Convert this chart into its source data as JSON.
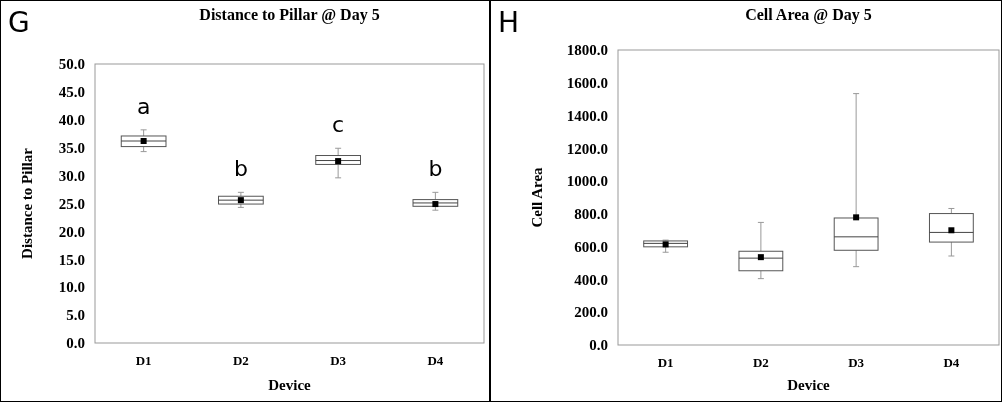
{
  "chart_data": [
    {
      "type": "box",
      "title": "Distance to Pillar @ Day 5",
      "xlabel": "Device",
      "ylabel": "Distance to Pillar",
      "categories": [
        "D1",
        "D2",
        "D3",
        "D4"
      ],
      "boxes": [
        {
          "low": 34.3,
          "q1": 35.2,
          "median": 36.2,
          "q3": 37.1,
          "high": 38.2,
          "mean": 36.2
        },
        {
          "low": 24.3,
          "q1": 24.9,
          "median": 25.6,
          "q3": 26.3,
          "high": 27.0,
          "mean": 25.6
        },
        {
          "low": 29.6,
          "q1": 32.0,
          "median": 32.7,
          "q3": 33.6,
          "high": 34.9,
          "mean": 32.6
        },
        {
          "low": 23.8,
          "q1": 24.5,
          "median": 25.1,
          "q3": 25.7,
          "high": 27.0,
          "mean": 24.9
        }
      ],
      "ylim": [
        0,
        50
      ],
      "yticks": [
        {
          "value": 0,
          "label": "0.0"
        },
        {
          "value": 5,
          "label": "5.0"
        },
        {
          "value": 10,
          "label": "10.0"
        },
        {
          "value": 15,
          "label": "15.0"
        },
        {
          "value": 20,
          "label": "20.0"
        },
        {
          "value": 25,
          "label": "25.0"
        },
        {
          "value": 30,
          "label": "30.0"
        },
        {
          "value": 35,
          "label": "35.0"
        },
        {
          "value": 40,
          "label": "40.0"
        },
        {
          "value": 45,
          "label": "45.0"
        },
        {
          "value": 50,
          "label": "50.0"
        }
      ],
      "annotations": [
        "G",
        "a",
        "b",
        "c",
        "b"
      ]
    },
    {
      "type": "box",
      "title": "Cell Area @ Day 5",
      "xlabel": "Device",
      "ylabel": "Cell Area",
      "categories": [
        "D1",
        "D2",
        "D3",
        "D4"
      ],
      "boxes": [
        {
          "low": 566,
          "q1": 599,
          "median": 620,
          "q3": 635,
          "high": 640,
          "mean": 614
        },
        {
          "low": 405,
          "q1": 453,
          "median": 530,
          "q3": 572,
          "high": 748,
          "mean": 536
        },
        {
          "low": 478,
          "q1": 578,
          "median": 660,
          "q3": 775,
          "high": 1534,
          "mean": 779
        },
        {
          "low": 543,
          "q1": 628,
          "median": 687,
          "q3": 802,
          "high": 833,
          "mean": 700
        }
      ],
      "ylim": [
        0,
        1800
      ],
      "yticks": [
        {
          "value": 0,
          "label": "0.0"
        },
        {
          "value": 200,
          "label": "200.0"
        },
        {
          "value": 400,
          "label": "400.0"
        },
        {
          "value": 600,
          "label": "600.0"
        },
        {
          "value": 800,
          "label": "800.0"
        },
        {
          "value": 1000,
          "label": "1000.0"
        },
        {
          "value": 1200,
          "label": "1200.0"
        },
        {
          "value": 1400,
          "label": "1400.0"
        },
        {
          "value": 1600,
          "label": "1600.0"
        },
        {
          "value": 1800,
          "label": "1800.0"
        }
      ],
      "annotations": [
        "H"
      ]
    }
  ]
}
